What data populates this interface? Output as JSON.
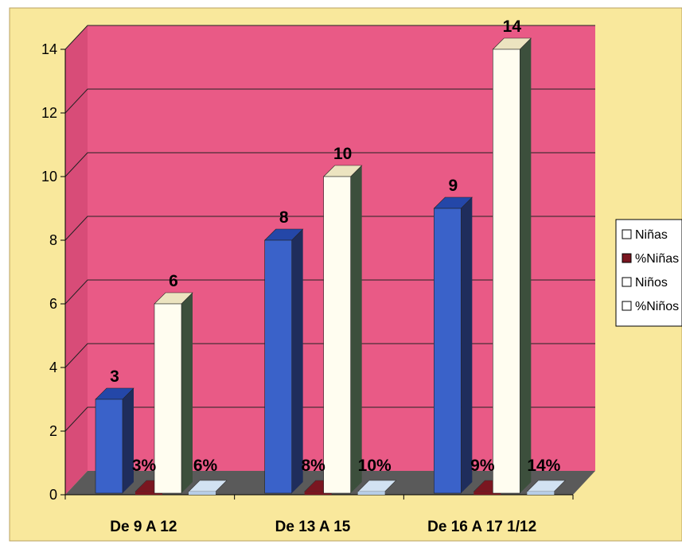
{
  "colors": {
    "chart_area": "#f9e89c",
    "plot_back": "#e95a86",
    "plot_side": "#d84c78",
    "floor": "#5a5a5a",
    "ninas_front": "#3a62c9",
    "ninas_top": "#2447a8",
    "ninas_side": "#1f2d5c",
    "pct_ninas_front": "#7a1620",
    "ninos_front": "#fffdf0",
    "ninos_top": "#ece4c0",
    "ninos_side": "#3c4f3c",
    "pct_ninos_front": "#b7cde6",
    "legend_bg": "#ffffff"
  },
  "chart_data": {
    "type": "bar",
    "title": "",
    "xlabel": "",
    "ylabel": "",
    "ylim": [
      0,
      14
    ],
    "yticks": [
      "0",
      "2",
      "4",
      "6",
      "8",
      "10",
      "12",
      "14"
    ],
    "grid": true,
    "legend_position": "right",
    "categories": [
      "De 9 A 12",
      "De 13 A 15",
      "De 16 A 17 1/12"
    ],
    "series": [
      {
        "name": "Niñas",
        "values": [
          3,
          8,
          9
        ],
        "labels": [
          "3",
          "8",
          "9"
        ]
      },
      {
        "name": "%Niñas",
        "values": [
          0.03,
          0.08,
          0.09
        ],
        "labels": [
          "3%",
          "8%",
          "9%"
        ]
      },
      {
        "name": "Niños",
        "values": [
          6,
          10,
          14
        ],
        "labels": [
          "6",
          "10",
          "14"
        ]
      },
      {
        "name": "%Niños",
        "values": [
          0.06,
          0.1,
          0.14
        ],
        "labels": [
          "6%",
          "10%",
          "14%"
        ]
      }
    ]
  }
}
